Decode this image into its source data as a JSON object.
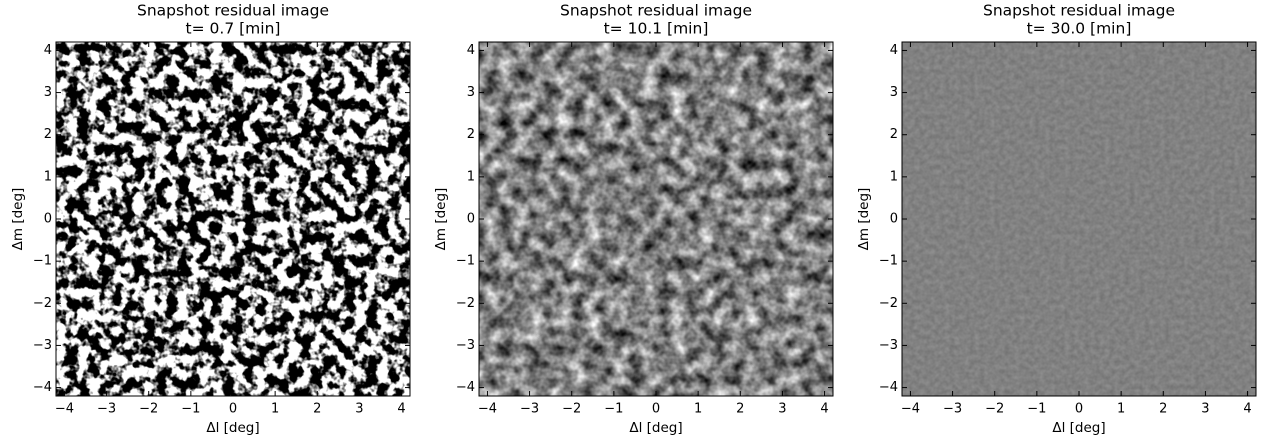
{
  "chart_data": [
    {
      "type": "image",
      "title": "Snapshot residual image",
      "subtitle": "t= 0.7 [min]",
      "xlabel": "Δl [deg]",
      "ylabel": "Δm [deg]",
      "xlim": [
        -4.2,
        4.2
      ],
      "ylim": [
        -4.2,
        4.2
      ],
      "xticks": [
        {
          "value": -4,
          "label": "−4"
        },
        {
          "value": -3,
          "label": "−3"
        },
        {
          "value": -2,
          "label": "−2"
        },
        {
          "value": -1,
          "label": "−1"
        },
        0,
        1,
        2,
        3,
        4
      ],
      "yticks": [
        {
          "value": -4,
          "label": "−4"
        },
        {
          "value": -3,
          "label": "−3"
        },
        {
          "value": -2,
          "label": "−2"
        },
        {
          "value": -1,
          "label": "−1"
        },
        0,
        1,
        2,
        3,
        4
      ]
    },
    {
      "type": "image",
      "title": "Snapshot residual image",
      "subtitle": "t= 10.1 [min]",
      "xlabel": "Δl [deg]",
      "ylabel": "Δm [deg]",
      "xlim": [
        -4.2,
        4.2
      ],
      "ylim": [
        -4.2,
        4.2
      ],
      "xticks": [
        {
          "value": -4,
          "label": "−4"
        },
        {
          "value": -3,
          "label": "−3"
        },
        {
          "value": -2,
          "label": "−2"
        },
        {
          "value": -1,
          "label": "−1"
        },
        0,
        1,
        2,
        3,
        4
      ],
      "yticks": [
        {
          "value": -4,
          "label": "−4"
        },
        {
          "value": -3,
          "label": "−3"
        },
        {
          "value": -2,
          "label": "−2"
        },
        {
          "value": -1,
          "label": "−1"
        },
        0,
        1,
        2,
        3,
        4
      ]
    },
    {
      "type": "image",
      "title": "Snapshot residual image",
      "subtitle": "t= 30.0 [min]",
      "xlabel": "Δl [deg]",
      "ylabel": "Δm [deg]",
      "xlim": [
        -4.2,
        4.2
      ],
      "ylim": [
        -4.2,
        4.2
      ],
      "xticks": [
        {
          "value": -4,
          "label": "−4"
        },
        {
          "value": -3,
          "label": "−3"
        },
        {
          "value": -2,
          "label": "−2"
        },
        {
          "value": -1,
          "label": "−1"
        },
        0,
        1,
        2,
        3,
        4
      ],
      "yticks": [
        {
          "value": -4,
          "label": "−4"
        },
        {
          "value": -3,
          "label": "−3"
        },
        {
          "value": -2,
          "label": "−2"
        },
        {
          "value": -1,
          "label": "−1"
        },
        0,
        1,
        2,
        3,
        4
      ]
    }
  ]
}
